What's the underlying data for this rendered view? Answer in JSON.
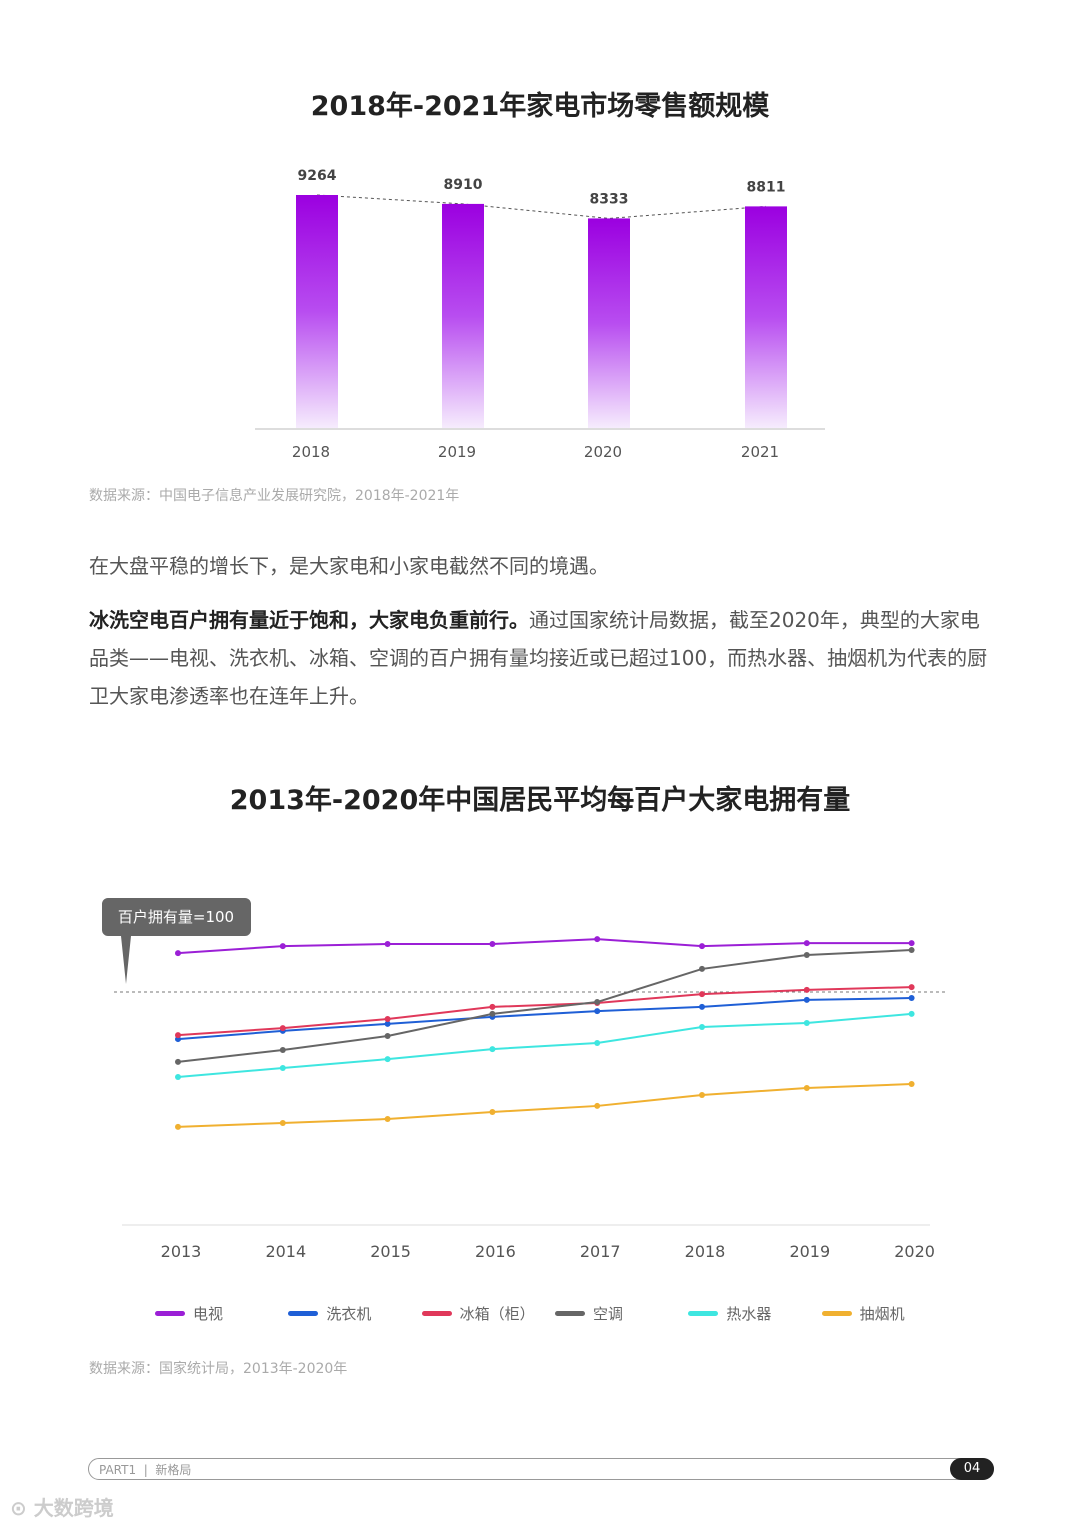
{
  "chart_data": [
    {
      "type": "bar",
      "title": "2018年-2021年家电市场零售额规模",
      "categories": [
        "2018",
        "2019",
        "2020",
        "2021"
      ],
      "values": [
        9264,
        8910,
        8333,
        8811
      ],
      "trendline": "dashed",
      "color": "#9b00e0",
      "ylim": [
        0,
        9264
      ]
    },
    {
      "type": "line",
      "title": "2013年-2020年中国居民平均每百户大家电拥有量",
      "categories": [
        "2013",
        "2014",
        "2015",
        "2016",
        "2017",
        "2018",
        "2019",
        "2020"
      ],
      "reference": {
        "value": 100,
        "label": "百户拥有量=100"
      },
      "ylim": [
        0,
        120
      ],
      "series": [
        {
          "name": "电视",
          "color": "#9b1fd6",
          "values": [
            116.7,
            119.7,
            120.6,
            120.6,
            122.7,
            119.7,
            121.0,
            121.0
          ]
        },
        {
          "name": "洗衣机",
          "color": "#1f5fd6",
          "values": [
            79.8,
            83.3,
            86.3,
            89.3,
            91.8,
            93.6,
            96.6,
            97.4
          ]
        },
        {
          "name": "冰箱（柜）",
          "color": "#e0385a",
          "values": [
            81.5,
            84.5,
            88.4,
            93.6,
            95.3,
            99.1,
            100.9,
            102.1
          ]
        },
        {
          "name": "空调",
          "color": "#666666",
          "values": [
            70.0,
            75.1,
            81.1,
            90.6,
            95.7,
            109.9,
            115.9,
            118.0
          ]
        },
        {
          "name": "热水器",
          "color": "#3ee6e0",
          "values": [
            63.5,
            67.4,
            71.2,
            75.5,
            78.1,
            85.0,
            86.7,
            90.6
          ]
        },
        {
          "name": "抽烟机",
          "color": "#f0b030",
          "values": [
            42.1,
            43.8,
            45.5,
            48.5,
            51.1,
            55.8,
            58.8,
            60.5
          ]
        }
      ]
    }
  ],
  "source1": "数据来源：中国电子信息产业发展研究院，2018年-2021年",
  "para1": "在大盘平稳的增长下，是大家电和小家电截然不同的境遇。",
  "para2_bold": "冰洗空电百户拥有量近于饱和，大家电负重前行。",
  "para2": "通过国家统计局数据，截至2020年，典型的大家电品类——电视、洗衣机、冰箱、空调的百户拥有量均接近或已超过100，而热水器、抽烟机为代表的厨卫大家电渗透率也在连年上升。",
  "source2": "数据来源：国家统计局，2013年-2020年",
  "footer": {
    "part": "PART1  |  新格局",
    "page": "04"
  },
  "watermark": "大数跨境"
}
